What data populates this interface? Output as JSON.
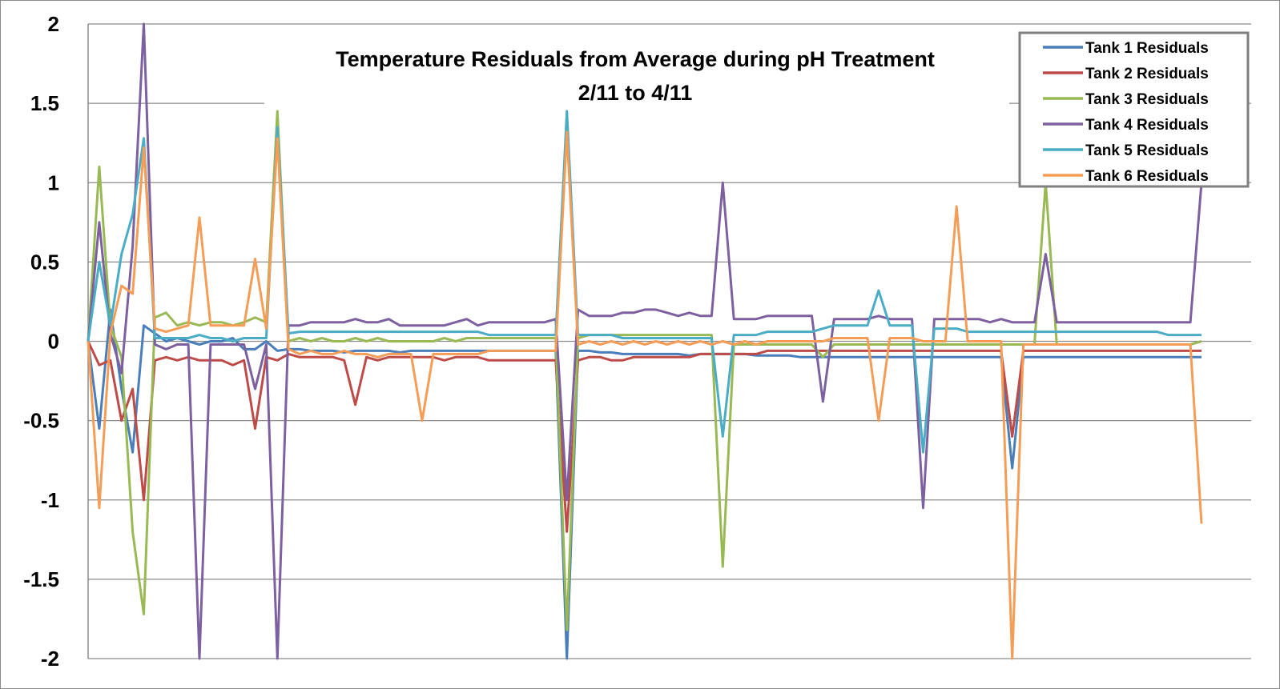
{
  "chart_data": {
    "type": "line",
    "title": "Temperature Residuals from Average during pH Treatment",
    "subtitle": "2/11 to  4/11",
    "xlabel": "",
    "ylabel": "",
    "ylim": [
      -2,
      2
    ],
    "yticks": [
      "2",
      "1.5",
      "1",
      "0.5",
      "0",
      "-0.5",
      "-1",
      "-1.5",
      "-2"
    ],
    "x": [
      0,
      1,
      2,
      3,
      4,
      5,
      6,
      7,
      8,
      9,
      10,
      11,
      12,
      13,
      14,
      15,
      16,
      17,
      18,
      19,
      20,
      21,
      22,
      23,
      24,
      25,
      26,
      27,
      28,
      29,
      30,
      31,
      32,
      33,
      34,
      35,
      36,
      37,
      38,
      39,
      40,
      41,
      42,
      43,
      44,
      45,
      46,
      47,
      48,
      49,
      50,
      51,
      52,
      53,
      54,
      55,
      56,
      57,
      58,
      59,
      60,
      61,
      62,
      63,
      64,
      65,
      66,
      67,
      68,
      69,
      70,
      71,
      72,
      73,
      74,
      75,
      76,
      77,
      78,
      79,
      80,
      81,
      82,
      83,
      84,
      85,
      86,
      87,
      88,
      89,
      90,
      91,
      92,
      93,
      94,
      95,
      96,
      97,
      98,
      99,
      100
    ],
    "grid": true,
    "legend_position": "top-right",
    "series": [
      {
        "name": "Tank 1 Residuals",
        "color": "#4a7ebb",
        "values": [
          0,
          -0.55,
          0.2,
          -0.3,
          -0.7,
          0.1,
          0.05,
          0.0,
          0.02,
          0.0,
          -0.02,
          0.0,
          0.0,
          0.02,
          -0.05,
          -0.05,
          0.0,
          -0.06,
          -0.05,
          -0.05,
          -0.06,
          -0.06,
          -0.06,
          -0.07,
          -0.06,
          -0.06,
          -0.06,
          -0.06,
          -0.07,
          -0.06,
          -0.06,
          -0.06,
          -0.06,
          -0.06,
          -0.06,
          -0.06,
          -0.06,
          -0.06,
          -0.06,
          -0.06,
          -0.06,
          -0.06,
          -0.06,
          -2.0,
          -0.06,
          -0.06,
          -0.07,
          -0.07,
          -0.08,
          -0.08,
          -0.08,
          -0.08,
          -0.08,
          -0.08,
          -0.09,
          -0.08,
          -0.08,
          -0.08,
          -0.08,
          -0.08,
          -0.09,
          -0.09,
          -0.09,
          -0.09,
          -0.1,
          -0.1,
          -0.1,
          -0.1,
          -0.1,
          -0.1,
          -0.1,
          -0.1,
          -0.1,
          -0.1,
          -0.1,
          -0.1,
          -0.1,
          -0.1,
          -0.1,
          -0.1,
          -0.1,
          -0.1,
          -0.1,
          -0.8,
          -0.1,
          -0.1,
          -0.1,
          -0.1,
          -0.1,
          -0.1,
          -0.1,
          -0.1,
          -0.1,
          -0.1,
          -0.1,
          -0.1,
          -0.1,
          -0.1,
          -0.1,
          -0.1,
          -0.1
        ]
      },
      {
        "name": "Tank 2 Residuals",
        "color": "#be4b48",
        "values": [
          0,
          -0.15,
          -0.12,
          -0.5,
          -0.3,
          -1.0,
          -0.12,
          -0.1,
          -0.12,
          -0.1,
          -0.12,
          -0.12,
          -0.12,
          -0.15,
          -0.12,
          -0.55,
          -0.1,
          -0.12,
          -0.08,
          -0.1,
          -0.1,
          -0.1,
          -0.1,
          -0.12,
          -0.4,
          -0.1,
          -0.12,
          -0.1,
          -0.1,
          -0.1,
          -0.1,
          -0.1,
          -0.12,
          -0.1,
          -0.1,
          -0.1,
          -0.12,
          -0.12,
          -0.12,
          -0.12,
          -0.12,
          -0.12,
          -0.12,
          -1.2,
          -0.12,
          -0.1,
          -0.1,
          -0.12,
          -0.12,
          -0.1,
          -0.1,
          -0.1,
          -0.1,
          -0.1,
          -0.1,
          -0.08,
          -0.08,
          -0.08,
          -0.08,
          -0.08,
          -0.08,
          -0.06,
          -0.06,
          -0.06,
          -0.06,
          -0.06,
          -0.06,
          -0.06,
          -0.06,
          -0.06,
          -0.06,
          -0.06,
          -0.06,
          -0.06,
          -0.06,
          -0.06,
          -0.06,
          -0.06,
          -0.06,
          -0.06,
          -0.06,
          -0.06,
          -0.06,
          -0.6,
          -0.06,
          -0.06,
          -0.06,
          -0.06,
          -0.06,
          -0.06,
          -0.06,
          -0.06,
          -0.06,
          -0.06,
          -0.06,
          -0.06,
          -0.06,
          -0.06,
          -0.06,
          -0.06,
          -0.06
        ]
      },
      {
        "name": "Tank 3 Residuals",
        "color": "#98b954",
        "values": [
          0,
          1.1,
          0.1,
          -0.1,
          -1.2,
          -1.72,
          0.15,
          0.18,
          0.1,
          0.12,
          0.1,
          0.12,
          0.12,
          0.1,
          0.12,
          0.15,
          0.12,
          1.45,
          0.0,
          0.02,
          0.0,
          0.02,
          0.0,
          0.0,
          0.02,
          0.0,
          0.02,
          0.0,
          0.0,
          0.0,
          0.0,
          0.0,
          0.02,
          0.0,
          0.02,
          0.02,
          0.02,
          0.02,
          0.02,
          0.02,
          0.02,
          0.02,
          0.02,
          -1.82,
          0.02,
          0.04,
          0.04,
          0.04,
          0.04,
          0.04,
          0.04,
          0.04,
          0.04,
          0.04,
          0.04,
          0.04,
          0.04,
          -1.42,
          -0.02,
          -0.02,
          -0.02,
          -0.02,
          -0.02,
          -0.02,
          -0.02,
          -0.02,
          -0.1,
          -0.02,
          -0.02,
          -0.02,
          -0.02,
          -0.02,
          -0.02,
          -0.02,
          -0.02,
          -0.02,
          -0.02,
          -0.02,
          -0.02,
          -0.02,
          -0.02,
          -0.02,
          -0.02,
          -0.02,
          -0.02,
          -0.02,
          1.0,
          -0.02,
          -0.02,
          -0.02,
          -0.02,
          -0.02,
          -0.02,
          -0.02,
          -0.02,
          -0.02,
          -0.02,
          -0.02,
          -0.02,
          -0.02,
          0.0
        ]
      },
      {
        "name": "Tank 4 Residuals",
        "color": "#7d60a0",
        "values": [
          0,
          0.75,
          0.05,
          -0.2,
          0.6,
          2.0,
          -0.02,
          -0.05,
          -0.02,
          -0.02,
          -2.0,
          -0.02,
          -0.02,
          -0.02,
          -0.02,
          -0.3,
          -0.02,
          -2.0,
          0.1,
          0.1,
          0.12,
          0.12,
          0.12,
          0.12,
          0.14,
          0.12,
          0.12,
          0.14,
          0.1,
          0.1,
          0.1,
          0.1,
          0.1,
          0.12,
          0.14,
          0.1,
          0.12,
          0.12,
          0.12,
          0.12,
          0.12,
          0.12,
          0.14,
          -1.0,
          0.2,
          0.16,
          0.16,
          0.16,
          0.18,
          0.18,
          0.2,
          0.2,
          0.18,
          0.16,
          0.18,
          0.16,
          0.16,
          1.0,
          0.14,
          0.14,
          0.14,
          0.16,
          0.16,
          0.16,
          0.16,
          0.16,
          -0.38,
          0.14,
          0.14,
          0.14,
          0.14,
          0.16,
          0.14,
          0.14,
          0.14,
          -1.05,
          0.14,
          0.14,
          0.14,
          0.14,
          0.14,
          0.12,
          0.14,
          0.12,
          0.12,
          0.12,
          0.55,
          0.12,
          0.12,
          0.12,
          0.12,
          0.12,
          0.12,
          0.12,
          0.12,
          0.12,
          0.12,
          0.12,
          0.12,
          0.12,
          1.0
        ]
      },
      {
        "name": "Tank 5 Residuals",
        "color": "#4aacc5",
        "values": [
          0,
          0.5,
          0.1,
          0.55,
          0.8,
          1.28,
          0.02,
          0.02,
          0.02,
          0.02,
          0.04,
          0.02,
          0.02,
          0.0,
          0.02,
          0.02,
          0.02,
          1.35,
          0.05,
          0.06,
          0.06,
          0.06,
          0.06,
          0.06,
          0.06,
          0.06,
          0.06,
          0.06,
          0.06,
          0.06,
          0.06,
          0.06,
          0.06,
          0.06,
          0.06,
          0.06,
          0.04,
          0.04,
          0.04,
          0.04,
          0.04,
          0.04,
          0.04,
          1.45,
          0.04,
          0.04,
          0.04,
          0.04,
          0.02,
          0.02,
          0.02,
          0.02,
          0.02,
          0.02,
          0.02,
          0.02,
          0.02,
          -0.6,
          0.04,
          0.04,
          0.04,
          0.06,
          0.06,
          0.06,
          0.06,
          0.06,
          0.08,
          0.1,
          0.1,
          0.1,
          0.1,
          0.32,
          0.1,
          0.1,
          0.1,
          -0.7,
          0.08,
          0.08,
          0.08,
          0.06,
          0.06,
          0.06,
          0.06,
          0.06,
          0.06,
          0.06,
          0.06,
          0.06,
          0.06,
          0.06,
          0.06,
          0.06,
          0.06,
          0.06,
          0.06,
          0.06,
          0.06,
          0.04,
          0.04,
          0.04,
          0.04
        ]
      },
      {
        "name": "Tank 6 Residuals",
        "color": "#f59d56",
        "values": [
          0,
          -1.05,
          0.05,
          0.35,
          0.3,
          1.22,
          0.08,
          0.06,
          0.08,
          0.1,
          0.78,
          0.1,
          0.1,
          0.1,
          0.1,
          0.52,
          0.08,
          1.28,
          -0.05,
          -0.08,
          -0.06,
          -0.08,
          -0.08,
          -0.06,
          -0.08,
          -0.08,
          -0.1,
          -0.08,
          -0.08,
          -0.08,
          -0.5,
          -0.08,
          -0.08,
          -0.08,
          -0.08,
          -0.08,
          -0.06,
          -0.06,
          -0.06,
          -0.06,
          -0.06,
          -0.06,
          -0.06,
          1.32,
          -0.02,
          0.0,
          -0.02,
          0.0,
          -0.02,
          0.0,
          -0.02,
          0.0,
          -0.02,
          0.0,
          -0.02,
          0.0,
          -0.02,
          0.0,
          -0.02,
          0.0,
          -0.02,
          0.0,
          0.0,
          0.0,
          0.0,
          0.0,
          0.0,
          0.02,
          0.02,
          0.02,
          0.02,
          -0.5,
          0.02,
          0.02,
          0.02,
          0.0,
          0.0,
          0.0,
          0.85,
          0.0,
          0.0,
          0.0,
          0.0,
          -2.0,
          -0.02,
          -0.02,
          -0.02,
          -0.02,
          -0.02,
          -0.02,
          -0.02,
          -0.02,
          -0.02,
          -0.02,
          -0.02,
          -0.02,
          -0.02,
          -0.02,
          -0.02,
          -0.02,
          -1.15
        ]
      }
    ]
  }
}
